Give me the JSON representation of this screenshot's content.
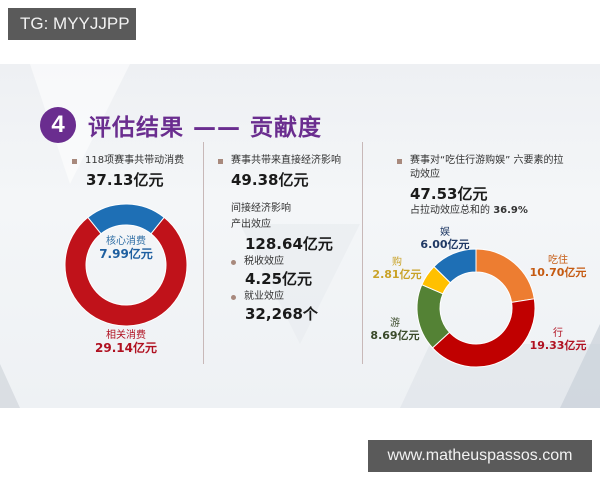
{
  "watermarks": {
    "top": "TG: MYYJJPP",
    "bottom": "www.matheuspassos.com"
  },
  "slide": {
    "section_number": "4",
    "title": "评估结果 —— 贡献度",
    "accent_color": "#6a2d8f"
  },
  "consumption": {
    "label": "118项赛事共带动消费",
    "total": "37.13亿元",
    "segments": [
      {
        "name": "核心消费",
        "value_text": "7.99亿元",
        "color": "#1e6fb5"
      },
      {
        "name": "相关消费",
        "value_text": "29.14亿元",
        "color": "#c0121a"
      }
    ]
  },
  "economic": {
    "direct_label": "赛事共带来直接经济影响",
    "direct_value": "49.38亿元",
    "indirect_heading": "间接经济影响",
    "output_label": "产出效应",
    "output_value": "128.64亿元",
    "tax_label": "税收效应",
    "tax_value": "4.25亿元",
    "employment_label": "就业效应",
    "employment_value": "32,268个"
  },
  "six_elements": {
    "label_line1": "赛事对“吃住行游购娱” 六要素的拉",
    "label_line2": "动效应",
    "total": "47.53亿元",
    "share_prefix": "占拉动效应总和的",
    "share_value": "36.9%",
    "segments": [
      {
        "name": "吃住",
        "value_text": "10.70亿元",
        "color": "#ed7d31",
        "label_color": "#c55a11"
      },
      {
        "name": "行",
        "value_text": "19.33亿元",
        "color": "#c00000",
        "label_color": "#b01020"
      },
      {
        "name": "游",
        "value_text": "8.69亿元",
        "color": "#548235",
        "label_color": "#3a4a2a"
      },
      {
        "name": "购",
        "value_text": "2.81亿元",
        "color": "#ffc000",
        "label_color": "#c9a227"
      },
      {
        "name": "娱",
        "value_text": "6.00亿元",
        "color": "#1e6fb5",
        "label_color": "#1f3864"
      }
    ]
  },
  "chart_data": [
    {
      "type": "pie",
      "subtype": "donut",
      "title": "118项赛事共带动消费 37.13亿元",
      "categories": [
        "核心消费",
        "相关消费"
      ],
      "values": [
        7.99,
        29.14
      ],
      "unit": "亿元",
      "colors": [
        "#1e6fb5",
        "#c0121a"
      ]
    },
    {
      "type": "pie",
      "subtype": "donut",
      "title": "赛事对“吃住行游购娱”六要素的拉动效应 47.53亿元",
      "categories": [
        "吃住",
        "行",
        "游",
        "购",
        "娱"
      ],
      "values": [
        10.7,
        19.33,
        8.69,
        2.81,
        6.0
      ],
      "unit": "亿元",
      "colors": [
        "#ed7d31",
        "#c00000",
        "#548235",
        "#ffc000",
        "#1e6fb5"
      ],
      "annotation": "占拉动效应总和的 36.9%"
    }
  ]
}
